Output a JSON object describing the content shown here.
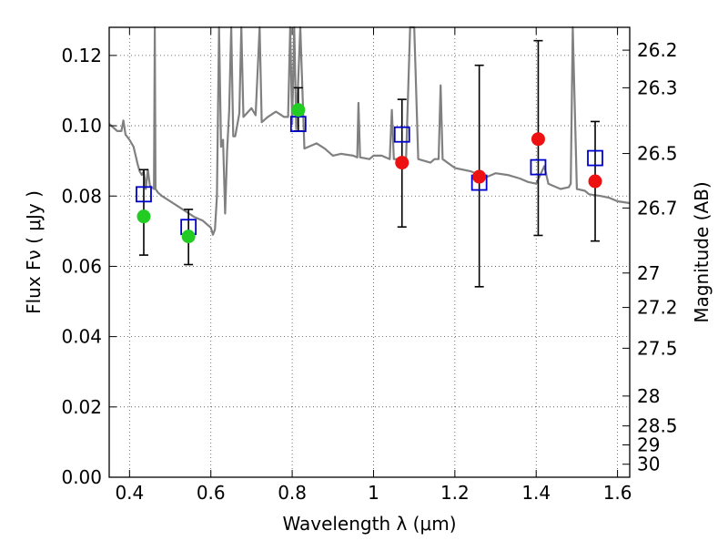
{
  "chart_data": {
    "type": "scatter",
    "xlabel": "Wavelength  λ (μm)",
    "ylabel": "Flux  Fν  ( μJy )",
    "ylabel_right": "Magnitude (AB)",
    "xlim": [
      0.35,
      1.63
    ],
    "ylim": [
      0.0,
      0.128
    ],
    "grid": true,
    "xticks": [
      {
        "value": 0.4,
        "label": "0.4"
      },
      {
        "value": 0.6,
        "label": "0.6"
      },
      {
        "value": 0.8,
        "label": "0.8"
      },
      {
        "value": 1.0,
        "label": "1"
      },
      {
        "value": 1.2,
        "label": "1.2"
      },
      {
        "value": 1.4,
        "label": "1.4"
      },
      {
        "value": 1.6,
        "label": "1.6"
      }
    ],
    "yticks": [
      {
        "value": 0.0,
        "label": "0.00"
      },
      {
        "value": 0.02,
        "label": "0.02"
      },
      {
        "value": 0.04,
        "label": "0.04"
      },
      {
        "value": 0.06,
        "label": "0.06"
      },
      {
        "value": 0.08,
        "label": "0.08"
      },
      {
        "value": 0.1,
        "label": "0.10"
      },
      {
        "value": 0.12,
        "label": "0.12"
      }
    ],
    "right_ticks": [
      {
        "label": "26.2",
        "flux": 0.1215
      },
      {
        "label": "26.3",
        "flux": 0.1108
      },
      {
        "label": "26.5",
        "flux": 0.0921
      },
      {
        "label": "26.7",
        "flux": 0.0766
      },
      {
        "label": "27",
        "flux": 0.0581
      },
      {
        "label": "27.2",
        "flux": 0.0483
      },
      {
        "label": "27.5",
        "flux": 0.0367
      },
      {
        "label": "28",
        "flux": 0.0231
      },
      {
        "label": "28.5",
        "flux": 0.0146
      },
      {
        "label": "29",
        "flux": 0.0092
      },
      {
        "label": "30",
        "flux": 0.0037
      }
    ],
    "spectrum": {
      "color": "#808080",
      "points": [
        [
          0.35,
          0.1005
        ],
        [
          0.37,
          0.0985
        ],
        [
          0.38,
          0.0985
        ],
        [
          0.385,
          0.1015
        ],
        [
          0.39,
          0.0975
        ],
        [
          0.4,
          0.096
        ],
        [
          0.41,
          0.094
        ],
        [
          0.42,
          0.089
        ],
        [
          0.425,
          0.087
        ],
        [
          0.43,
          0.086
        ],
        [
          0.435,
          0.087
        ],
        [
          0.44,
          0.082
        ],
        [
          0.445,
          0.0875
        ],
        [
          0.45,
          0.083
        ],
        [
          0.455,
          0.0825
        ],
        [
          0.46,
          0.082
        ],
        [
          0.462,
          0.128
        ],
        [
          0.464,
          0.082
        ],
        [
          0.47,
          0.081
        ],
        [
          0.48,
          0.08
        ],
        [
          0.5,
          0.0785
        ],
        [
          0.52,
          0.077
        ],
        [
          0.54,
          0.0755
        ],
        [
          0.56,
          0.074
        ],
        [
          0.58,
          0.073
        ],
        [
          0.6,
          0.071
        ],
        [
          0.605,
          0.069
        ],
        [
          0.61,
          0.0705
        ],
        [
          0.615,
          0.08
        ],
        [
          0.62,
          0.128
        ],
        [
          0.625,
          0.094
        ],
        [
          0.63,
          0.096
        ],
        [
          0.635,
          0.075
        ],
        [
          0.64,
          0.093
        ],
        [
          0.645,
          0.104
        ],
        [
          0.65,
          0.128
        ],
        [
          0.655,
          0.097
        ],
        [
          0.66,
          0.097
        ],
        [
          0.67,
          0.1035
        ],
        [
          0.675,
          0.128
        ],
        [
          0.68,
          0.1025
        ],
        [
          0.7,
          0.105
        ],
        [
          0.71,
          0.103
        ],
        [
          0.72,
          0.128
        ],
        [
          0.725,
          0.101
        ],
        [
          0.74,
          0.1025
        ],
        [
          0.76,
          0.104
        ],
        [
          0.78,
          0.1025
        ],
        [
          0.79,
          0.1025
        ],
        [
          0.795,
          0.128
        ],
        [
          0.8,
          0.1005
        ],
        [
          0.805,
          0.128
        ],
        [
          0.81,
          0.099
        ],
        [
          0.82,
          0.128
        ],
        [
          0.83,
          0.0935
        ],
        [
          0.86,
          0.095
        ],
        [
          0.88,
          0.0935
        ],
        [
          0.9,
          0.0915
        ],
        [
          0.92,
          0.092
        ],
        [
          0.95,
          0.0915
        ],
        [
          0.96,
          0.091
        ],
        [
          0.963,
          0.1065
        ],
        [
          0.967,
          0.091
        ],
        [
          0.99,
          0.0905
        ],
        [
          1.0,
          0.0915
        ],
        [
          1.02,
          0.0915
        ],
        [
          1.04,
          0.0905
        ],
        [
          1.045,
          0.1045
        ],
        [
          1.05,
          0.0905
        ],
        [
          1.08,
          0.0905
        ],
        [
          1.09,
          0.128
        ],
        [
          1.1,
          0.128
        ],
        [
          1.11,
          0.0905
        ],
        [
          1.14,
          0.0895
        ],
        [
          1.15,
          0.0905
        ],
        [
          1.16,
          0.0905
        ],
        [
          1.165,
          0.1115
        ],
        [
          1.17,
          0.0905
        ],
        [
          1.2,
          0.088
        ],
        [
          1.24,
          0.087
        ],
        [
          1.26,
          0.086
        ],
        [
          1.28,
          0.0855
        ],
        [
          1.3,
          0.0865
        ],
        [
          1.33,
          0.086
        ],
        [
          1.36,
          0.085
        ],
        [
          1.38,
          0.084
        ],
        [
          1.4,
          0.0835
        ],
        [
          1.42,
          0.0885
        ],
        [
          1.43,
          0.0835
        ],
        [
          1.44,
          0.083
        ],
        [
          1.46,
          0.082
        ],
        [
          1.48,
          0.0825
        ],
        [
          1.485,
          0.0835
        ],
        [
          1.49,
          0.128
        ],
        [
          1.5,
          0.082
        ],
        [
          1.52,
          0.0815
        ],
        [
          1.53,
          0.0805
        ],
        [
          1.56,
          0.08
        ],
        [
          1.58,
          0.0795
        ],
        [
          1.6,
          0.0785
        ],
        [
          1.63,
          0.078
        ]
      ]
    },
    "series": [
      {
        "marker": "open-square",
        "color": "#0000cc",
        "points": [
          {
            "x": 0.435,
            "y": 0.0805,
            "yerr_low": 0.0632,
            "yerr_high": 0.0875
          },
          {
            "x": 0.545,
            "y": 0.0712,
            "yerr_low": 0.0605,
            "yerr_high": 0.0762
          },
          {
            "x": 0.815,
            "y": 0.1005,
            "yerr_low": 0.0985,
            "yerr_high": 0.1108
          },
          {
            "x": 1.07,
            "y": 0.0975,
            "yerr_low": 0.0712,
            "yerr_high": 0.1075
          },
          {
            "x": 1.26,
            "y": 0.0838,
            "yerr_low": 0.0542,
            "yerr_high": 0.1172
          },
          {
            "x": 1.405,
            "y": 0.0882,
            "yerr_low": 0.0688,
            "yerr_high": 0.1242
          },
          {
            "x": 1.545,
            "y": 0.0908,
            "yerr_low": 0.0672,
            "yerr_high": 0.1012
          }
        ]
      },
      {
        "marker": "filled-circle",
        "color": "#22cc22",
        "points": [
          {
            "x": 0.435,
            "y": 0.0742
          },
          {
            "x": 0.545,
            "y": 0.0685
          },
          {
            "x": 0.815,
            "y": 0.1045
          }
        ]
      },
      {
        "marker": "filled-circle",
        "color": "#ee1111",
        "points": [
          {
            "x": 1.07,
            "y": 0.0895
          },
          {
            "x": 1.26,
            "y": 0.0855
          },
          {
            "x": 1.405,
            "y": 0.0962
          },
          {
            "x": 1.545,
            "y": 0.0842
          }
        ]
      }
    ]
  }
}
